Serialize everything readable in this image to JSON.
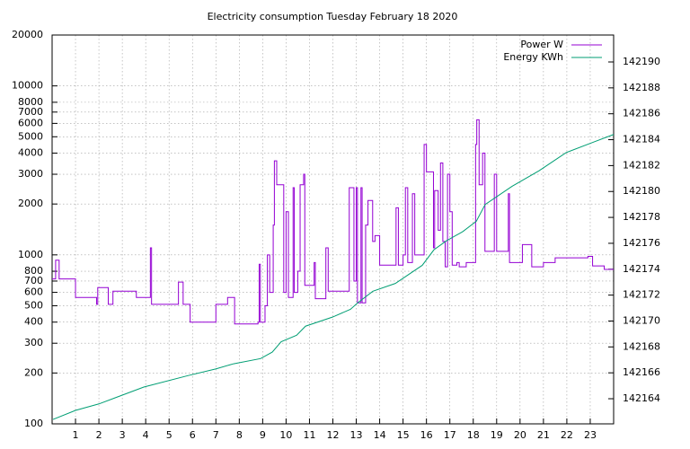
{
  "chart_data": {
    "type": "line",
    "title": "Electricity consumption Tuesday February 18 2020",
    "xlim": [
      0,
      24
    ],
    "xticks": [
      1,
      2,
      3,
      4,
      5,
      6,
      7,
      8,
      9,
      10,
      11,
      12,
      13,
      14,
      15,
      16,
      17,
      18,
      19,
      20,
      21,
      22,
      23
    ],
    "ylim": [
      100,
      20000
    ],
    "yticks": [
      100,
      200,
      300,
      400,
      500,
      600,
      700,
      800,
      1000,
      2000,
      3000,
      4000,
      5000,
      6000,
      7000,
      8000,
      10000,
      20000
    ],
    "log_y": true,
    "y2lim": [
      142162.06,
      142192.08
    ],
    "y2ticks": [
      142164,
      142166,
      142168,
      142170,
      142172,
      142174,
      142176,
      142178,
      142180,
      142182,
      142184,
      142186,
      142188,
      142190
    ],
    "grid": true,
    "legend": "top-right",
    "steps": true,
    "series": [
      {
        "name": "Power W",
        "color": "#9400d3",
        "x": [
          0,
          0.15,
          0.3,
          1.0,
          1.9,
          1.95,
          2.4,
          2.6,
          3.6,
          4.2,
          4.25,
          5.4,
          5.6,
          5.9,
          7.0,
          7.5,
          7.8,
          8.8,
          8.85,
          8.9,
          9.1,
          9.2,
          9.3,
          9.45,
          9.5,
          9.6,
          9.9,
          10.0,
          10.1,
          10.3,
          10.35,
          10.5,
          10.6,
          10.75,
          10.8,
          11.2,
          11.25,
          11.7,
          11.8,
          12.7,
          12.9,
          13.0,
          13.05,
          13.2,
          13.25,
          13.4,
          13.5,
          13.7,
          13.8,
          14.0,
          14.7,
          14.8,
          15.0,
          15.1,
          15.2,
          15.4,
          15.5,
          15.9,
          16.0,
          16.3,
          16.35,
          16.5,
          16.6,
          16.7,
          16.8,
          16.9,
          17.0,
          17.1,
          17.3,
          17.4,
          17.7,
          18.1,
          18.15,
          18.25,
          18.4,
          18.5,
          18.9,
          19.0,
          19.5,
          19.55,
          20.1,
          20.5,
          21.0,
          21.5,
          22.9,
          23.1,
          23.6,
          24
        ],
        "values": [
          720,
          930,
          720,
          560,
          510,
          640,
          510,
          610,
          560,
          1100,
          510,
          690,
          510,
          400,
          510,
          560,
          390,
          400,
          880,
          400,
          500,
          1000,
          600,
          1500,
          3600,
          2600,
          600,
          1800,
          560,
          2500,
          600,
          800,
          2600,
          3000,
          660,
          900,
          550,
          1100,
          610,
          2500,
          700,
          2500,
          520,
          2500,
          520,
          1500,
          2100,
          1200,
          1300,
          870,
          1900,
          870,
          1000,
          2500,
          900,
          2300,
          1000,
          4500,
          3100,
          1100,
          2400,
          1400,
          3500,
          1200,
          850,
          3000,
          1800,
          870,
          900,
          850,
          900,
          4500,
          6300,
          2600,
          4000,
          1050,
          3000,
          1050,
          2300,
          900,
          1150,
          850,
          900,
          960,
          980,
          860,
          820,
          820
        ]
      },
      {
        "name": "Energy KWh",
        "color": "#009e73",
        "axis": "y2",
        "x": [
          0.04,
          1.0,
          2.0,
          3.92,
          5.84,
          6.99,
          7.76,
          8.91,
          9.41,
          9.79,
          10.45,
          10.83,
          11.98,
          12.75,
          13.06,
          13.71,
          14.67,
          15.82,
          16.32,
          16.86,
          17.55,
          18.13,
          18.51,
          19.66,
          20.81,
          21.97,
          23.12,
          24
        ],
        "values": [
          142162.4,
          142163.1,
          142163.6,
          142164.9,
          142165.8,
          142166.3,
          142166.7,
          142167.1,
          142167.6,
          142168.4,
          142168.9,
          142169.6,
          142170.3,
          142170.9,
          142171.4,
          142172.3,
          142172.9,
          142174.3,
          142175.5,
          142176.2,
          142176.9,
          142177.7,
          142179.0,
          142180.4,
          142181.6,
          142183.0,
          142183.8,
          142184.4
        ]
      }
    ]
  }
}
